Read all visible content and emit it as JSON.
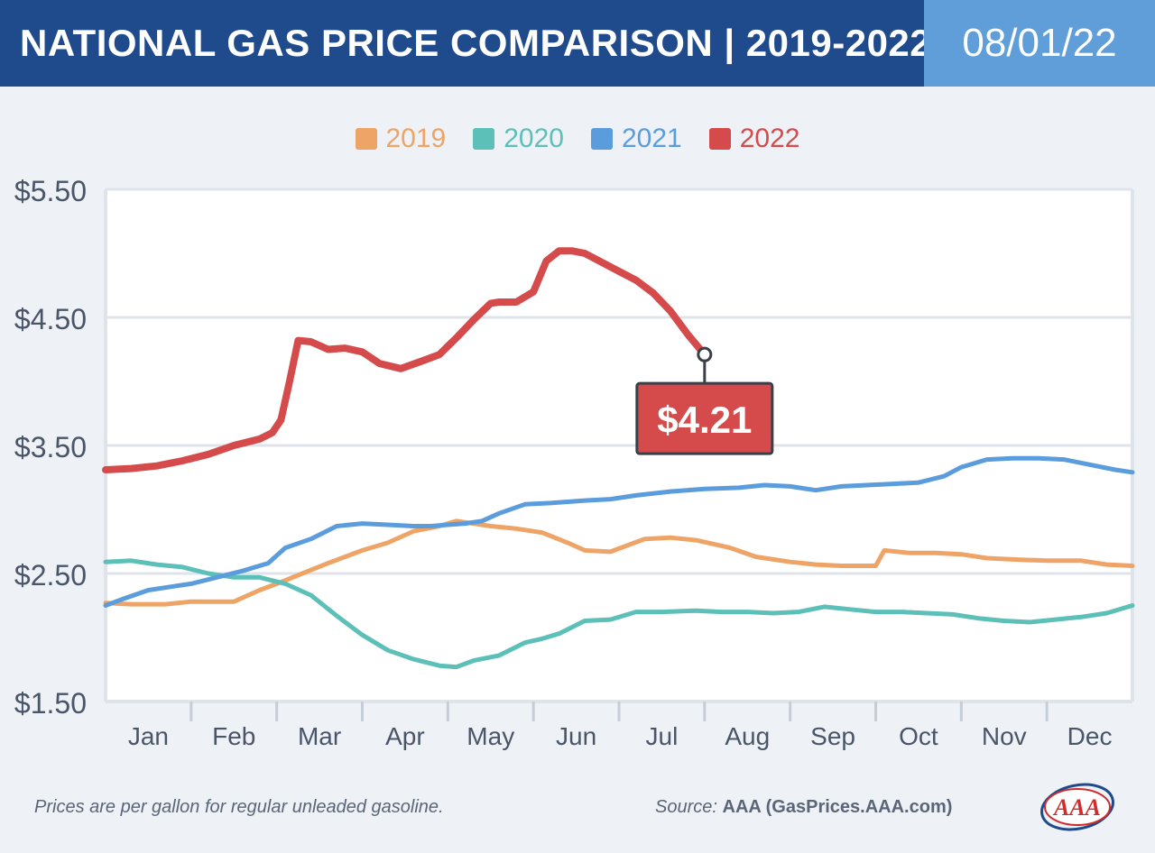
{
  "header": {
    "title": "NATIONAL GAS PRICE COMPARISON | 2019-2022",
    "date": "08/01/22"
  },
  "footer": {
    "note": "Prices are per gallon for regular unleaded gasoline.",
    "source_label": "Source:",
    "source_value": "AAA (GasPrices.AAA.com)",
    "logo_text": "AAA"
  },
  "colors": {
    "2019": "#eea466",
    "2020": "#5cbfb8",
    "2021": "#5b9cdc",
    "2022": "#d54b4b"
  },
  "chart_data": {
    "type": "line",
    "title": "NATIONAL GAS PRICE COMPARISON | 2019-2022",
    "xlabel": "",
    "ylabel": "",
    "x_ticks": [
      "Jan",
      "Feb",
      "Mar",
      "Apr",
      "May",
      "Jun",
      "Jul",
      "Aug",
      "Sep",
      "Oct",
      "Nov",
      "Dec"
    ],
    "y_ticks": [
      "$5.50",
      "$4.50",
      "$3.50",
      "$2.50",
      "$1.50"
    ],
    "ylim": [
      1.5,
      5.5
    ],
    "xlim": [
      0,
      12
    ],
    "grid": "horizontal",
    "legend": "top-center",
    "annotation": {
      "series": "2022",
      "x": 7.0,
      "y": 4.21,
      "label": "$4.21"
    },
    "series": [
      {
        "name": "2019",
        "x": [
          0,
          0.3,
          0.7,
          1,
          1.5,
          1.8,
          2,
          2.3,
          2.6,
          3,
          3.3,
          3.6,
          3.9,
          4.1,
          4.5,
          4.8,
          5.1,
          5.4,
          5.6,
          5.9,
          6.3,
          6.6,
          6.9,
          7.3,
          7.6,
          8,
          8.3,
          8.6,
          9,
          9.1,
          9.4,
          9.7,
          10,
          10.3,
          10.6,
          11,
          11.4,
          11.7,
          12
        ],
        "y": [
          2.27,
          2.26,
          2.26,
          2.28,
          2.28,
          2.37,
          2.42,
          2.5,
          2.58,
          2.68,
          2.74,
          2.83,
          2.87,
          2.91,
          2.87,
          2.85,
          2.82,
          2.74,
          2.68,
          2.67,
          2.77,
          2.78,
          2.76,
          2.7,
          2.63,
          2.59,
          2.57,
          2.56,
          2.56,
          2.68,
          2.66,
          2.66,
          2.65,
          2.62,
          2.61,
          2.6,
          2.6,
          2.57,
          2.56
        ]
      },
      {
        "name": "2020",
        "x": [
          0,
          0.3,
          0.6,
          0.9,
          1.2,
          1.5,
          1.8,
          2.1,
          2.4,
          2.7,
          3,
          3.3,
          3.6,
          3.9,
          4.1,
          4.3,
          4.6,
          4.9,
          5.1,
          5.3,
          5.6,
          5.9,
          6.2,
          6.5,
          6.9,
          7.2,
          7.5,
          7.8,
          8.1,
          8.4,
          8.7,
          9,
          9.3,
          9.6,
          9.9,
          10.2,
          10.5,
          10.8,
          11.1,
          11.4,
          11.7,
          12
        ],
        "y": [
          2.59,
          2.6,
          2.57,
          2.55,
          2.5,
          2.47,
          2.47,
          2.42,
          2.33,
          2.17,
          2.02,
          1.9,
          1.83,
          1.78,
          1.77,
          1.82,
          1.86,
          1.96,
          1.99,
          2.03,
          2.13,
          2.14,
          2.2,
          2.2,
          2.21,
          2.2,
          2.2,
          2.19,
          2.2,
          2.24,
          2.22,
          2.2,
          2.2,
          2.19,
          2.18,
          2.15,
          2.13,
          2.12,
          2.14,
          2.16,
          2.19,
          2.25
        ]
      },
      {
        "name": "2021",
        "x": [
          0,
          0.2,
          0.5,
          0.8,
          1,
          1.3,
          1.6,
          1.9,
          2.1,
          2.4,
          2.7,
          3,
          3.3,
          3.6,
          3.8,
          4,
          4.2,
          4.4,
          4.6,
          4.9,
          5.2,
          5.6,
          5.9,
          6.2,
          6.6,
          7,
          7.4,
          7.7,
          8,
          8.3,
          8.6,
          8.9,
          9.2,
          9.5,
          9.8,
          10,
          10.3,
          10.6,
          10.9,
          11.2,
          11.5,
          11.8,
          12
        ],
        "y": [
          2.25,
          2.3,
          2.37,
          2.4,
          2.42,
          2.47,
          2.52,
          2.58,
          2.7,
          2.77,
          2.87,
          2.89,
          2.88,
          2.87,
          2.87,
          2.88,
          2.89,
          2.91,
          2.97,
          3.04,
          3.05,
          3.07,
          3.08,
          3.11,
          3.14,
          3.16,
          3.17,
          3.19,
          3.18,
          3.15,
          3.18,
          3.19,
          3.2,
          3.21,
          3.26,
          3.33,
          3.39,
          3.4,
          3.4,
          3.39,
          3.35,
          3.31,
          3.29
        ]
      },
      {
        "name": "2022",
        "x": [
          0,
          0.3,
          0.6,
          0.9,
          1.2,
          1.5,
          1.8,
          1.95,
          2.05,
          2.15,
          2.25,
          2.4,
          2.6,
          2.8,
          3,
          3.2,
          3.45,
          3.7,
          3.9,
          4.1,
          4.3,
          4.5,
          4.6,
          4.8,
          5,
          5.15,
          5.3,
          5.45,
          5.6,
          5.8,
          6,
          6.2,
          6.4,
          6.6,
          6.8,
          7
        ],
        "y": [
          3.31,
          3.32,
          3.34,
          3.38,
          3.43,
          3.5,
          3.55,
          3.6,
          3.7,
          4.0,
          4.32,
          4.31,
          4.25,
          4.26,
          4.23,
          4.14,
          4.1,
          4.16,
          4.21,
          4.34,
          4.48,
          4.61,
          4.62,
          4.62,
          4.7,
          4.94,
          5.02,
          5.02,
          5.0,
          4.93,
          4.86,
          4.79,
          4.69,
          4.55,
          4.37,
          4.21
        ]
      }
    ]
  }
}
